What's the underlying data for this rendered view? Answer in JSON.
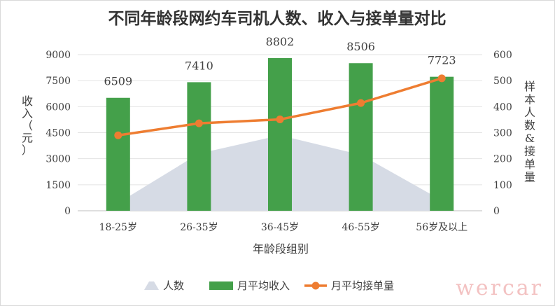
{
  "chart_data": {
    "type": "bar",
    "title": "不同年龄段网约车司机人数、收入与接单量对比",
    "categories": [
      "18-25岁",
      "26-35岁",
      "36-45岁",
      "46-55岁",
      "56岁及以上"
    ],
    "xlabel": "年龄段组别",
    "ylabel": "收入（元）",
    "ylabel_right": "样本人数&接单量",
    "ylim": [
      0,
      9000
    ],
    "y_ticks": [
      0,
      1500,
      3000,
      4500,
      6000,
      7500,
      9000
    ],
    "ylim_right": [
      0,
      600
    ],
    "y_ticks_right": [
      0,
      100,
      200,
      300,
      400,
      500,
      600
    ],
    "series": [
      {
        "name": "人数",
        "type": "area",
        "axis": "right",
        "color": "#d6dbe5",
        "values": [
          30,
          220,
          290,
          215,
          40
        ]
      },
      {
        "name": "月平均收入",
        "type": "bar",
        "axis": "left",
        "color": "#44a04a",
        "values": [
          6509,
          7410,
          8802,
          8506,
          7723
        ],
        "labels": [
          "6509",
          "7410",
          "8802",
          "8506",
          "7723"
        ]
      },
      {
        "name": "月平均接单量",
        "type": "line",
        "axis": "right",
        "color": "#ee7d31",
        "values": [
          290,
          336,
          351,
          414,
          509
        ]
      }
    ],
    "grid": true,
    "legend_position": "bottom"
  },
  "watermark": "wercar"
}
